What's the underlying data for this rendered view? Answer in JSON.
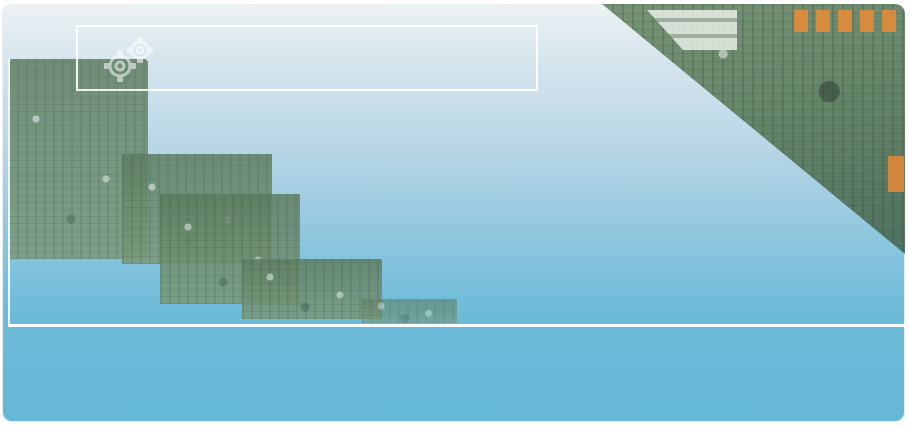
{
  "banner": {
    "title": "",
    "icons": {
      "gear": "gears-icon"
    },
    "colors": {
      "sky_top": "#eef2f4",
      "sky_bottom": "#66b8d7",
      "outline": "#ffffff",
      "connector_orange": "#e28b3a"
    }
  }
}
